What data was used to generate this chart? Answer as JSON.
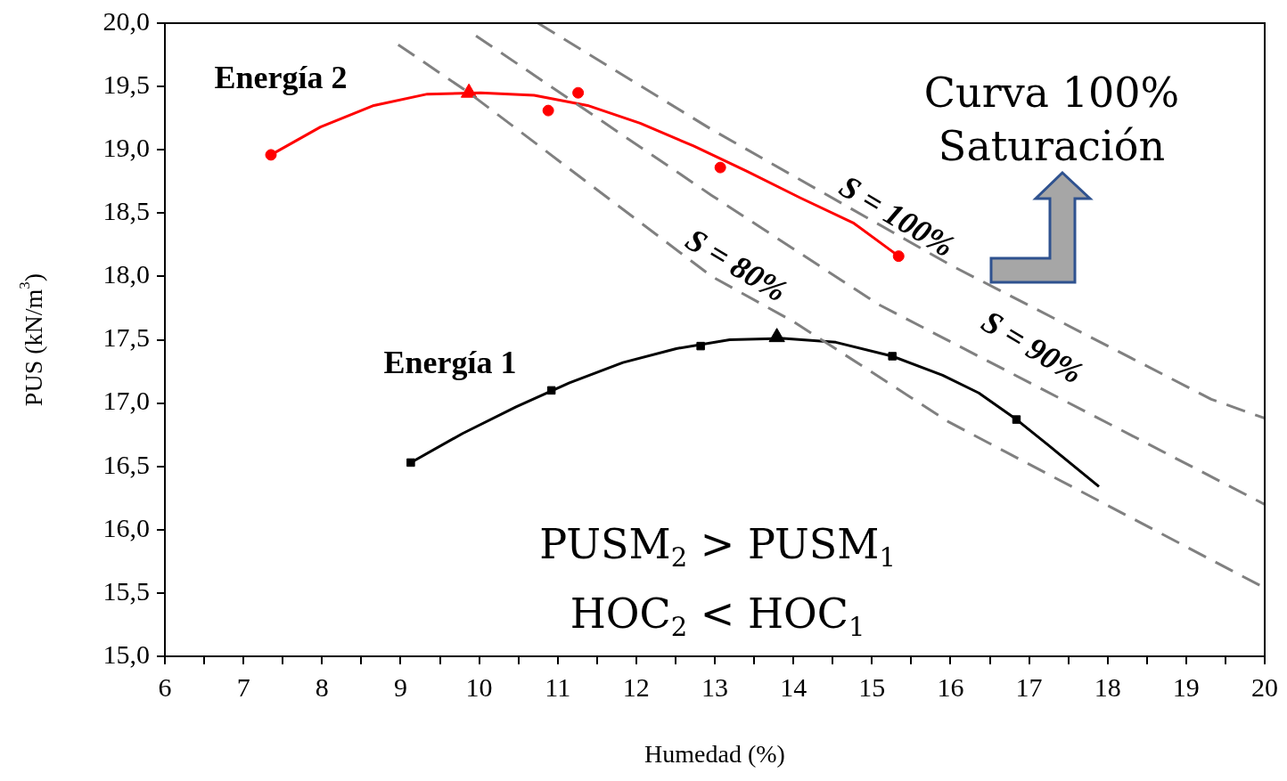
{
  "chart_data": {
    "type": "scatter",
    "xlabel": "Humedad (%)",
    "ylabel": "PUS (kN/m$^{3}$)",
    "xlim": [
      6,
      20
    ],
    "ylim": [
      15,
      20
    ],
    "xticks": [
      6,
      {
        "value": 6.5,
        "label": null
      },
      7,
      {
        "value": 7.5,
        "label": null
      },
      8,
      {
        "value": 8.5,
        "label": null
      },
      9,
      {
        "value": 9.5,
        "label": null
      },
      10,
      {
        "value": 10.5,
        "label": null
      },
      11,
      {
        "value": 11.5,
        "label": null
      },
      12,
      {
        "value": 12.5,
        "label": null
      },
      13,
      {
        "value": 13.5,
        "label": null
      },
      14,
      {
        "value": 14.5,
        "label": null
      },
      15,
      {
        "value": 15.5,
        "label": null
      },
      16,
      {
        "value": 16.5,
        "label": null
      },
      17,
      {
        "value": 17.5,
        "label": null
      },
      18,
      {
        "value": 18.5,
        "label": null
      },
      19,
      {
        "value": 19.5,
        "label": null
      },
      20
    ],
    "yticks": [
      {
        "value": 15,
        "label": "15,0"
      },
      {
        "value": 15.5,
        "label": "15,5"
      },
      {
        "value": 16,
        "label": "16,0"
      },
      {
        "value": 16.5,
        "label": "16,5"
      },
      {
        "value": 17,
        "label": "17,0"
      },
      {
        "value": 17.5,
        "label": "17,5"
      },
      {
        "value": 18,
        "label": "18,0"
      },
      {
        "value": 18.5,
        "label": "18,5"
      },
      {
        "value": 19,
        "label": "19,0"
      },
      {
        "value": 19.5,
        "label": "19,5"
      },
      {
        "value": 20,
        "label": "20,0"
      }
    ],
    "grid": false,
    "legend": false,
    "series": [
      {
        "type": "line",
        "color": "#808080",
        "line_style": "dashed",
        "marker": "none",
        "x": [
          8.97,
          9.87,
          12.96,
          14.01,
          15.98,
          20
        ],
        "values": [
          19.83,
          19.45,
          18.0,
          17.64,
          16.85,
          15.54
        ]
      },
      {
        "type": "line",
        "color": "#808080",
        "line_style": "dashed",
        "marker": "none",
        "x": [
          9.96,
          12.96,
          15.08,
          20
        ],
        "values": [
          19.9,
          18.64,
          17.78,
          16.2
        ]
      },
      {
        "type": "line",
        "color": "#808080",
        "line_style": "dashed",
        "marker": "none",
        "x": [
          10.75,
          12.96,
          16,
          19.32,
          20
        ],
        "values": [
          20.0,
          19.16,
          18.09,
          17.03,
          16.88
        ]
      },
      {
        "type": "line",
        "color": "#ff0000",
        "line_style": "solid",
        "marker": "none",
        "x": [
          7.35,
          7.98,
          8.66,
          9.34,
          10.02,
          10.7,
          11.38,
          12.05,
          12.73,
          13.41,
          14.09,
          14.77,
          15.34
        ],
        "values": [
          18.96,
          19.18,
          19.35,
          19.44,
          19.45,
          19.43,
          19.35,
          19.21,
          19.03,
          18.83,
          18.62,
          18.42,
          18.16
        ]
      },
      {
        "color": "#ff0000",
        "marker": "circle",
        "x": [
          7.35,
          10.88,
          11.26,
          13.07,
          15.34
        ],
        "values": [
          18.96,
          19.31,
          19.45,
          18.86,
          18.16
        ]
      },
      {
        "color": "#ff0000",
        "marker": "triangle",
        "x": [
          9.87
        ],
        "values": [
          19.45
        ]
      },
      {
        "type": "line",
        "color": "#000000",
        "line_style": "solid",
        "marker": "none",
        "x": [
          9.13,
          9.79,
          10.47,
          11.15,
          11.83,
          12.51,
          13.19,
          13.87,
          14.54,
          15.26,
          15.9,
          16.36,
          16.84,
          17.26,
          17.89
        ],
        "values": [
          16.53,
          16.76,
          16.97,
          17.16,
          17.32,
          17.43,
          17.5,
          17.51,
          17.48,
          17.37,
          17.22,
          17.08,
          16.87,
          16.66,
          16.34
        ]
      },
      {
        "color": "#000000",
        "marker": "square",
        "x": [
          9.13,
          10.92,
          12.82,
          15.26,
          16.84
        ],
        "values": [
          16.53,
          17.1,
          17.45,
          17.37,
          16.87
        ]
      },
      {
        "color": "#000000",
        "marker": "triangle",
        "x": [
          13.79
        ],
        "values": [
          17.52
        ]
      }
    ],
    "annotations": [
      "Energía 2",
      "Energía 1",
      "S = 100%",
      "S = 90%",
      "S = 80%",
      "Curva 100%",
      "Saturación",
      "PUSM$_{2}$ > PUSM$_{1}$",
      "HOC$_{2}$ < HOC$_{1}$"
    ]
  }
}
